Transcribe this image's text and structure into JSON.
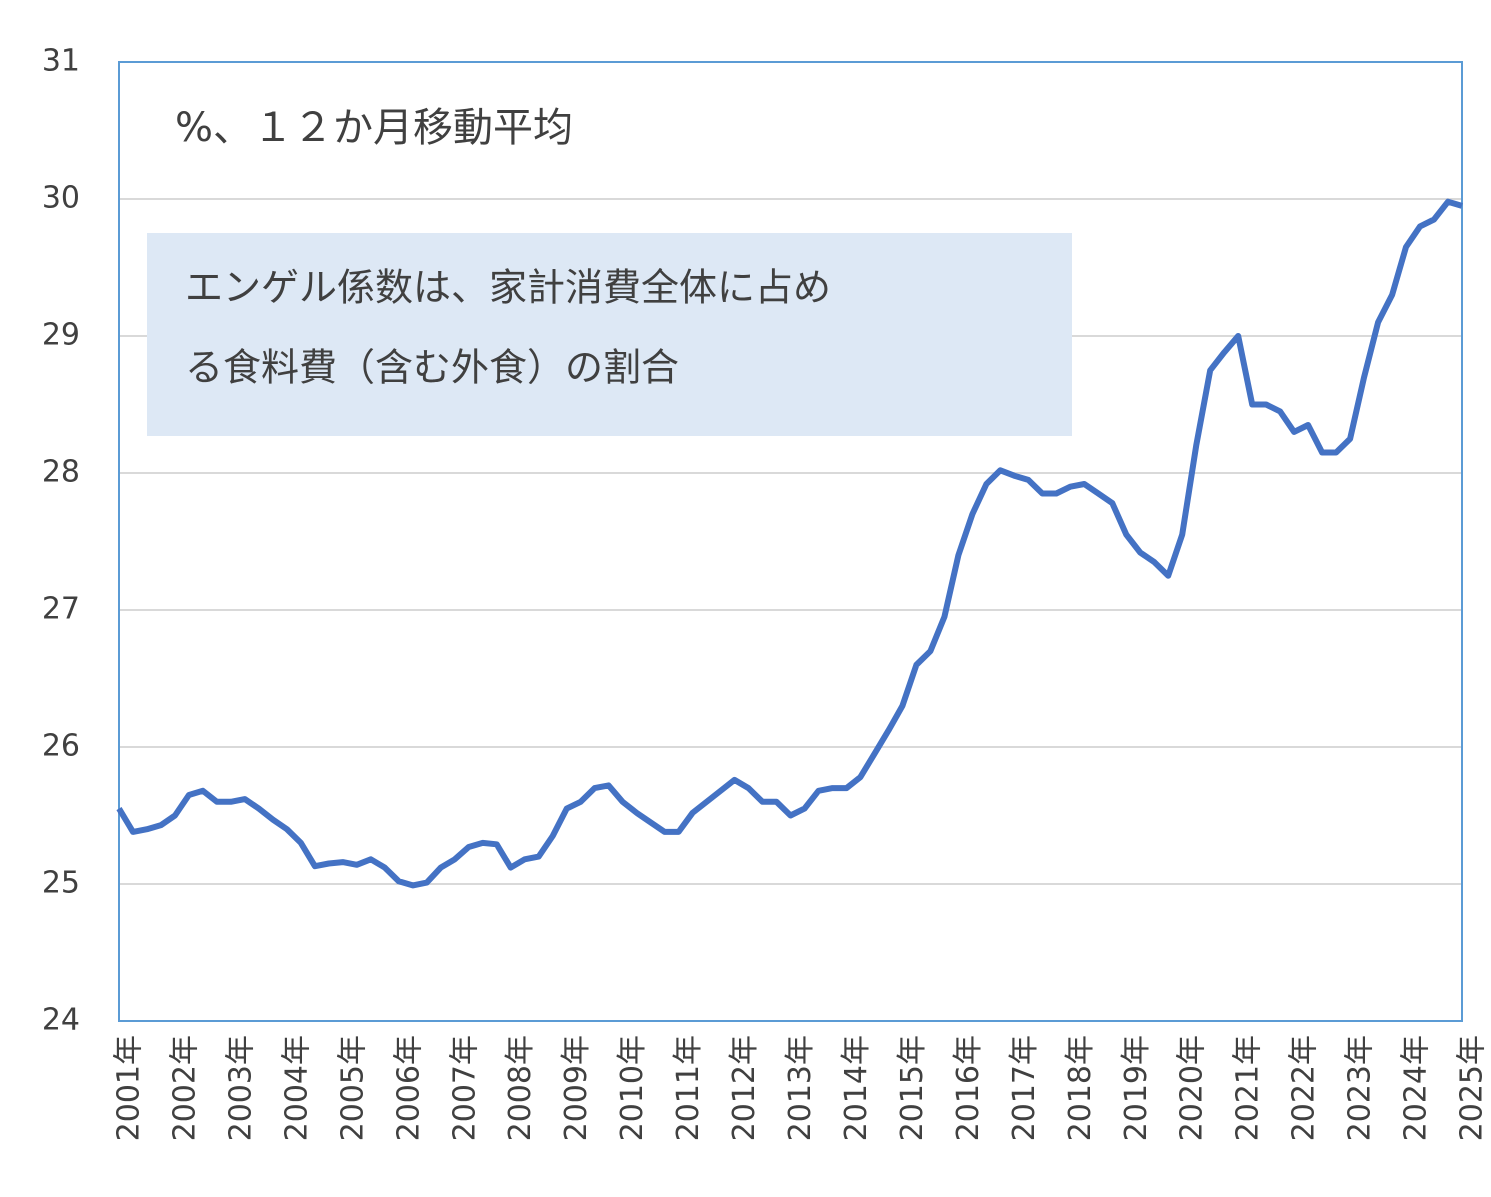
{
  "chart_data": {
    "type": "line",
    "annotation": "%、１２か月移動平均",
    "note_lines": [
      "エンゲル係数は、家計消費全体に占め",
      "る食料費（含む外食）の割合"
    ],
    "categories": [
      "2001年",
      null,
      null,
      null,
      "2002年",
      null,
      null,
      null,
      "2003年",
      null,
      null,
      null,
      "2004年",
      null,
      null,
      null,
      "2005年",
      null,
      null,
      null,
      "2006年",
      null,
      null,
      null,
      "2007年",
      null,
      null,
      null,
      "2008年",
      null,
      null,
      null,
      "2009年",
      null,
      null,
      null,
      "2010年",
      null,
      null,
      null,
      "2011年",
      null,
      null,
      null,
      "2012年",
      null,
      null,
      null,
      "2013年",
      null,
      null,
      null,
      "2014年",
      null,
      null,
      null,
      "2015年",
      null,
      null,
      null,
      "2016年",
      null,
      null,
      null,
      "2017年",
      null,
      null,
      null,
      "2018年",
      null,
      null,
      null,
      "2019年",
      null,
      null,
      null,
      "2020年",
      null,
      null,
      null,
      "2021年",
      null,
      null,
      null,
      "2022年",
      null,
      null,
      null,
      "2023年",
      null,
      null,
      null,
      "2024年",
      null,
      null,
      null,
      "2025年"
    ],
    "series": [
      {
        "color": "#4472c4",
        "values": [
          25.55,
          25.38,
          25.4,
          25.43,
          25.5,
          25.65,
          25.68,
          25.6,
          25.6,
          25.62,
          25.55,
          25.47,
          25.4,
          25.3,
          25.13,
          25.15,
          25.16,
          25.14,
          25.18,
          25.12,
          25.02,
          24.99,
          25.01,
          25.12,
          25.18,
          25.27,
          25.3,
          25.29,
          25.12,
          25.18,
          25.2,
          25.35,
          25.55,
          25.6,
          25.7,
          25.72,
          25.6,
          25.52,
          25.45,
          25.38,
          25.38,
          25.52,
          25.6,
          25.68,
          25.76,
          25.7,
          25.6,
          25.6,
          25.5,
          25.55,
          25.68,
          25.7,
          25.7,
          25.78,
          25.95,
          26.12,
          26.3,
          26.6,
          26.7,
          26.95,
          27.4,
          27.7,
          27.92,
          28.02,
          27.98,
          27.95,
          27.85,
          27.85,
          27.9,
          27.92,
          27.85,
          27.78,
          27.55,
          27.42,
          27.35,
          27.25,
          27.55,
          28.2,
          28.75,
          28.88,
          29.0,
          28.5,
          28.5,
          28.45,
          28.3,
          28.35,
          28.15,
          28.15,
          28.25,
          28.7,
          29.1,
          29.3,
          29.65,
          29.8,
          29.85,
          29.98,
          29.95
        ]
      }
    ],
    "ylim": [
      24,
      31
    ],
    "yticks": [
      24,
      25,
      26,
      27,
      28,
      29,
      30,
      31
    ],
    "grid": true
  }
}
